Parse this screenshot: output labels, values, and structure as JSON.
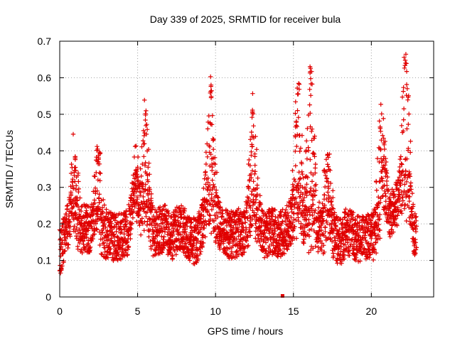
{
  "chart_data": {
    "type": "scatter",
    "title": "Day 339 of 2025, SRMTID for receiver bula",
    "xlabel": "GPS time / hours",
    "ylabel": "SRMTID / TECUs",
    "xlim": [
      0,
      24
    ],
    "ylim": [
      0,
      0.7
    ],
    "xticks": [
      0,
      5,
      10,
      15,
      20
    ],
    "xtick_labels": [
      "0",
      "5",
      "10",
      "15",
      "20"
    ],
    "yticks": [
      0,
      0.1,
      0.2,
      0.3,
      0.4,
      0.5,
      0.6,
      0.7
    ],
    "ytick_labels": [
      "0",
      "0.1",
      "0.2",
      "0.3",
      "0.4",
      "0.5",
      "0.6",
      "0.7"
    ],
    "grid": true,
    "marker": "+",
    "color": "#e00000",
    "series": [
      {
        "name": "SRMTID",
        "baseline_x": [
          0.0,
          0.4,
          0.8,
          1.2,
          1.6,
          2.0,
          2.4,
          2.8,
          3.2,
          3.6,
          4.0,
          4.4,
          4.8,
          5.2,
          5.6,
          6.0,
          6.4,
          6.8,
          7.2,
          7.6,
          8.0,
          8.4,
          8.8,
          9.2,
          9.6,
          10.0,
          10.4,
          10.8,
          11.2,
          11.6,
          12.0,
          12.4,
          12.8,
          13.2,
          13.6,
          14.0,
          14.4,
          14.8,
          15.2,
          15.6,
          16.0,
          16.4,
          16.8,
          17.2,
          17.6,
          18.0,
          18.4,
          18.8,
          19.2,
          19.6,
          20.0,
          20.4,
          20.8,
          21.2,
          21.6,
          22.0,
          22.4,
          22.8
        ],
        "baseline_y": [
          0.12,
          0.17,
          0.24,
          0.17,
          0.19,
          0.18,
          0.22,
          0.15,
          0.17,
          0.16,
          0.17,
          0.18,
          0.28,
          0.22,
          0.2,
          0.17,
          0.18,
          0.19,
          0.16,
          0.19,
          0.18,
          0.16,
          0.15,
          0.2,
          0.24,
          0.2,
          0.19,
          0.17,
          0.17,
          0.18,
          0.17,
          0.22,
          0.18,
          0.17,
          0.18,
          0.17,
          0.18,
          0.2,
          0.2,
          0.19,
          0.18,
          0.17,
          0.18,
          0.18,
          0.16,
          0.15,
          0.18,
          0.17,
          0.16,
          0.17,
          0.16,
          0.18,
          0.28,
          0.22,
          0.26,
          0.25,
          0.24,
          0.16
        ],
        "peaks": [
          {
            "x": 1.0,
            "y": 0.4
          },
          {
            "x": 2.5,
            "y": 0.4
          },
          {
            "x": 4.9,
            "y": 0.36
          },
          {
            "x": 5.5,
            "y": 0.51
          },
          {
            "x": 9.7,
            "y": 0.585
          },
          {
            "x": 12.4,
            "y": 0.53
          },
          {
            "x": 15.3,
            "y": 0.59
          },
          {
            "x": 16.1,
            "y": 0.635
          },
          {
            "x": 17.2,
            "y": 0.39
          },
          {
            "x": 20.6,
            "y": 0.47
          },
          {
            "x": 22.2,
            "y": 0.67
          }
        ],
        "outlier": {
          "x": 14.3,
          "y": 0.0
        }
      }
    ]
  }
}
